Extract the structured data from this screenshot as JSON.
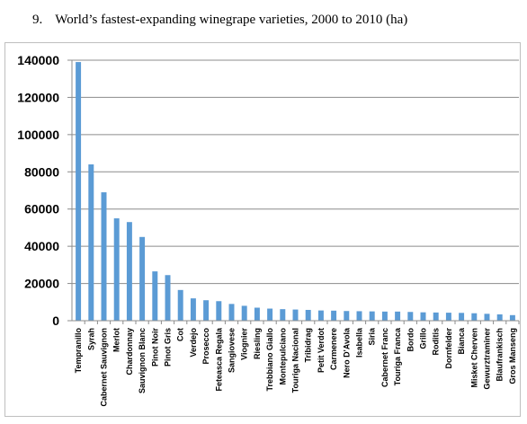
{
  "caption": {
    "number": "9.",
    "title": "World’s fastest-expanding winegrape varieties, 2000 to 2010 (ha)"
  },
  "chart_data": {
    "type": "bar",
    "title": "World’s fastest-expanding winegrape varieties, 2000 to 2010 (ha)",
    "xlabel": "",
    "ylabel": "",
    "ylim": [
      0,
      140000
    ],
    "yticks": [
      0,
      20000,
      40000,
      60000,
      80000,
      100000,
      120000,
      140000
    ],
    "grid": true,
    "legend": "none",
    "bar_color": "#5b9bd5",
    "categories": [
      "Tempranillo",
      "Syrah",
      "Cabernet Sauvignon",
      "Merlot",
      "Chardonnay",
      "Sauvignon Blanc",
      "Pinot Noir",
      "Pinot Gris",
      "Cot",
      "Verdejo",
      "Prosecco",
      "Feteasca Regala",
      "Sangiovese",
      "Viognier",
      "Riesling",
      "Trebbiano Giallo",
      "Montepulciano",
      "Touriga Nacional",
      "Tribidrag",
      "Petit Verdot",
      "Carmenere",
      "Nero D'Avola",
      "Isabella",
      "Siria",
      "Cabernet Franc",
      "Touriga Franca",
      "Bordo",
      "Grillo",
      "Roditis",
      "Dornfelder",
      "Bianca",
      "Misket Cherven",
      "Gewurztraminer",
      "Blaufrankisch",
      "Gros Manseng"
    ],
    "values": [
      139000,
      84000,
      69000,
      55000,
      53000,
      45000,
      26500,
      24500,
      16500,
      12000,
      11000,
      10500,
      9000,
      8000,
      7000,
      6500,
      6200,
      6000,
      5800,
      5500,
      5400,
      5200,
      5100,
      5000,
      4900,
      4900,
      4700,
      4500,
      4400,
      4300,
      4200,
      4000,
      3700,
      3400,
      3000
    ]
  }
}
